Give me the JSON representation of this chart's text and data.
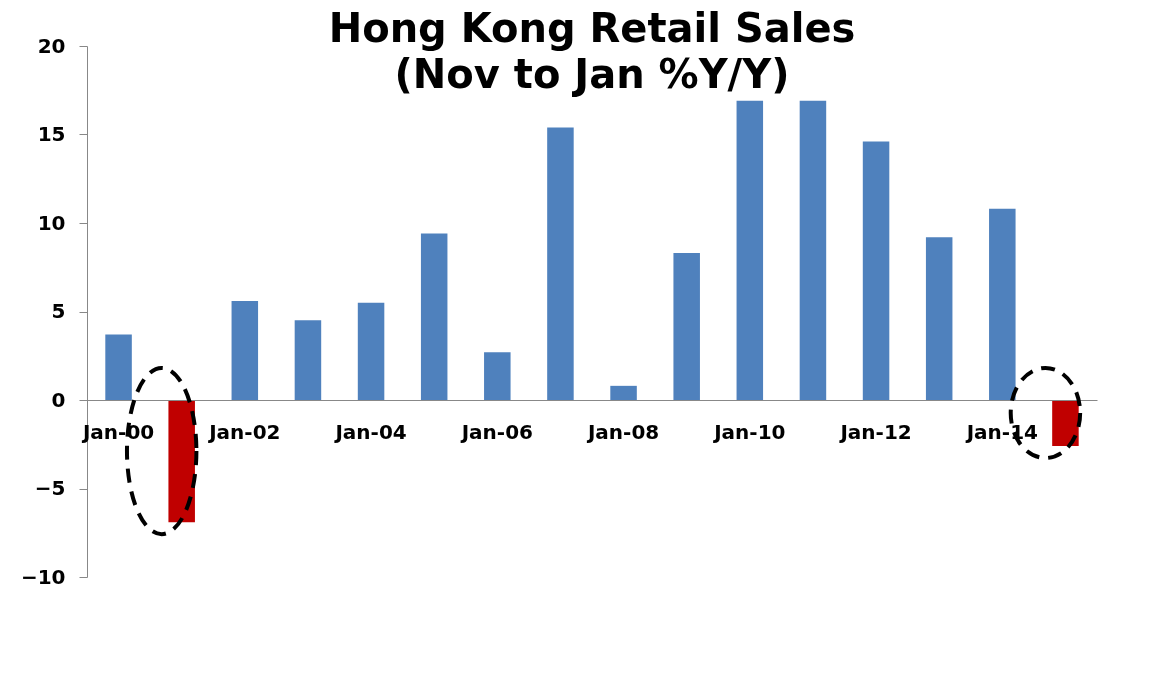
{
  "chart_data": {
    "type": "bar",
    "title": "Hong Kong Retail Sales",
    "subtitle": "(Nov to Jan %Y/Y)",
    "categories": [
      "Jan-00",
      null,
      "Jan-02",
      null,
      "Jan-04",
      null,
      "Jan-06",
      null,
      "Jan-08",
      null,
      "Jan-10",
      null,
      "Jan-12",
      null,
      "Jan-14",
      null
    ],
    "values": [
      3.7,
      -6.9,
      5.6,
      4.5,
      5.5,
      9.4,
      2.7,
      15.4,
      0.8,
      8.3,
      16.9,
      16.9,
      14.6,
      9.2,
      10.8,
      -2.6
    ],
    "colors": [
      "#4f81bd",
      "#c00000",
      "#4f81bd",
      "#4f81bd",
      "#4f81bd",
      "#4f81bd",
      "#4f81bd",
      "#4f81bd",
      "#4f81bd",
      "#4f81bd",
      "#4f81bd",
      "#4f81bd",
      "#4f81bd",
      "#4f81bd",
      "#4f81bd",
      "#c00000"
    ],
    "ylim": [
      -10,
      20
    ],
    "yticks": [
      -10,
      -5,
      0,
      5,
      10,
      15,
      20
    ],
    "grid": false,
    "legend": false
  }
}
